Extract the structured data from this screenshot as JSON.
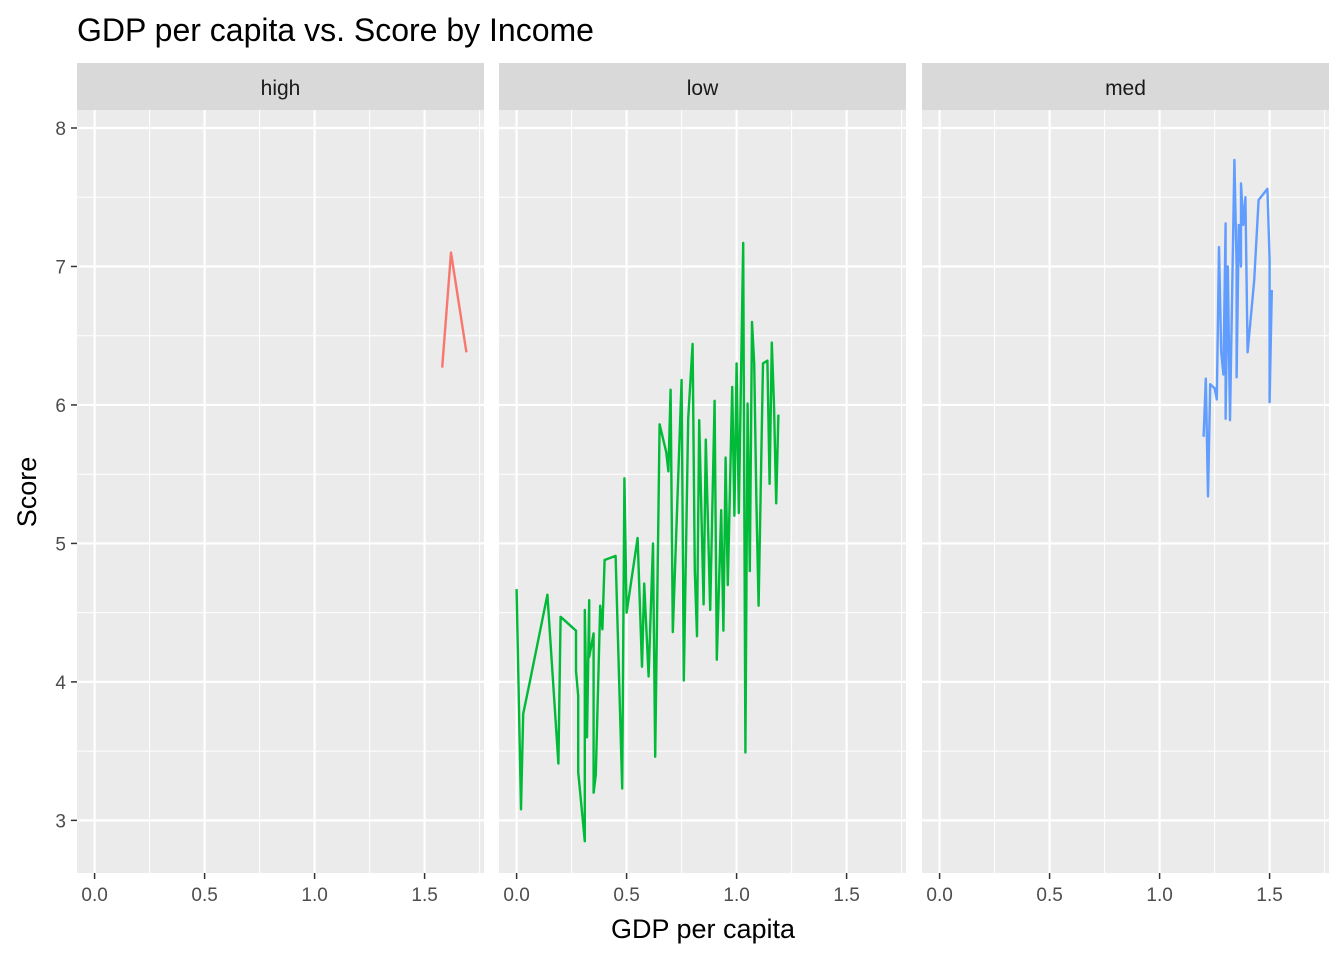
{
  "chart_data": {
    "type": "line",
    "title": "GDP per capita vs. Score by Income",
    "xlabel": "GDP per capita",
    "ylabel": "Score",
    "xlim": [
      -0.08,
      1.77
    ],
    "ylim": [
      2.62,
      8.13
    ],
    "x_ticks": [
      "0.0",
      "0.5",
      "1.0",
      "1.5"
    ],
    "x_tick_values": [
      0.0,
      0.5,
      1.0,
      1.5
    ],
    "y_ticks": [
      "3",
      "4",
      "5",
      "6",
      "7",
      "8"
    ],
    "y_tick_values": [
      3,
      4,
      5,
      6,
      7,
      8
    ],
    "grid": true,
    "legend": "none",
    "panels": [
      {
        "strip": "high",
        "color": "#F8766D",
        "points": [
          [
            1.58,
            6.27
          ],
          [
            1.62,
            7.1
          ],
          [
            1.69,
            6.38
          ]
        ]
      },
      {
        "strip": "low",
        "color": "#00BA38",
        "points": [
          [
            0.0,
            4.67
          ],
          [
            0.02,
            3.08
          ],
          [
            0.03,
            3.77
          ],
          [
            0.06,
            4.0
          ],
          [
            0.14,
            4.63
          ],
          [
            0.19,
            3.41
          ],
          [
            0.2,
            4.47
          ],
          [
            0.27,
            4.37
          ],
          [
            0.27,
            4.08
          ],
          [
            0.28,
            3.9
          ],
          [
            0.28,
            3.35
          ],
          [
            0.31,
            2.85
          ],
          [
            0.31,
            4.52
          ],
          [
            0.32,
            3.6
          ],
          [
            0.33,
            4.59
          ],
          [
            0.33,
            4.18
          ],
          [
            0.35,
            4.35
          ],
          [
            0.35,
            3.2
          ],
          [
            0.36,
            3.33
          ],
          [
            0.38,
            4.55
          ],
          [
            0.39,
            4.38
          ],
          [
            0.4,
            4.88
          ],
          [
            0.45,
            4.91
          ],
          [
            0.48,
            3.23
          ],
          [
            0.49,
            5.47
          ],
          [
            0.5,
            4.5
          ],
          [
            0.55,
            5.04
          ],
          [
            0.57,
            4.11
          ],
          [
            0.58,
            4.71
          ],
          [
            0.6,
            4.04
          ],
          [
            0.62,
            5.0
          ],
          [
            0.63,
            3.46
          ],
          [
            0.65,
            5.86
          ],
          [
            0.68,
            5.66
          ],
          [
            0.69,
            5.52
          ],
          [
            0.7,
            6.11
          ],
          [
            0.71,
            4.36
          ],
          [
            0.75,
            6.18
          ],
          [
            0.76,
            4.01
          ],
          [
            0.78,
            5.9
          ],
          [
            0.8,
            6.44
          ],
          [
            0.81,
            4.8
          ],
          [
            0.82,
            4.33
          ],
          [
            0.83,
            5.89
          ],
          [
            0.85,
            4.56
          ],
          [
            0.86,
            5.75
          ],
          [
            0.88,
            4.52
          ],
          [
            0.9,
            6.03
          ],
          [
            0.91,
            4.16
          ],
          [
            0.93,
            5.24
          ],
          [
            0.94,
            4.37
          ],
          [
            0.95,
            5.62
          ],
          [
            0.96,
            4.7
          ],
          [
            0.98,
            6.13
          ],
          [
            0.99,
            5.2
          ],
          [
            1.0,
            6.3
          ],
          [
            1.01,
            5.22
          ],
          [
            1.03,
            7.17
          ],
          [
            1.04,
            3.49
          ],
          [
            1.05,
            6.01
          ],
          [
            1.06,
            4.8
          ],
          [
            1.07,
            6.6
          ],
          [
            1.08,
            6.3
          ],
          [
            1.09,
            5.3
          ],
          [
            1.1,
            4.55
          ],
          [
            1.12,
            6.3
          ],
          [
            1.14,
            6.32
          ],
          [
            1.15,
            5.43
          ],
          [
            1.16,
            6.45
          ],
          [
            1.17,
            6.0
          ],
          [
            1.18,
            5.29
          ],
          [
            1.19,
            5.93
          ]
        ]
      },
      {
        "strip": "med",
        "color": "#619CFF",
        "points": [
          [
            1.2,
            5.77
          ],
          [
            1.21,
            6.19
          ],
          [
            1.22,
            5.34
          ],
          [
            1.23,
            6.15
          ],
          [
            1.25,
            6.12
          ],
          [
            1.26,
            6.04
          ],
          [
            1.27,
            7.14
          ],
          [
            1.28,
            6.38
          ],
          [
            1.29,
            6.22
          ],
          [
            1.3,
            7.31
          ],
          [
            1.3,
            5.9
          ],
          [
            1.31,
            7.0
          ],
          [
            1.32,
            5.89
          ],
          [
            1.34,
            7.77
          ],
          [
            1.35,
            7.0
          ],
          [
            1.35,
            6.2
          ],
          [
            1.36,
            7.3
          ],
          [
            1.37,
            7.0
          ],
          [
            1.37,
            7.6
          ],
          [
            1.38,
            7.3
          ],
          [
            1.39,
            7.5
          ],
          [
            1.4,
            6.38
          ],
          [
            1.43,
            6.9
          ],
          [
            1.45,
            7.48
          ],
          [
            1.49,
            7.56
          ],
          [
            1.5,
            7.05
          ],
          [
            1.5,
            6.02
          ],
          [
            1.51,
            6.83
          ]
        ]
      }
    ]
  }
}
